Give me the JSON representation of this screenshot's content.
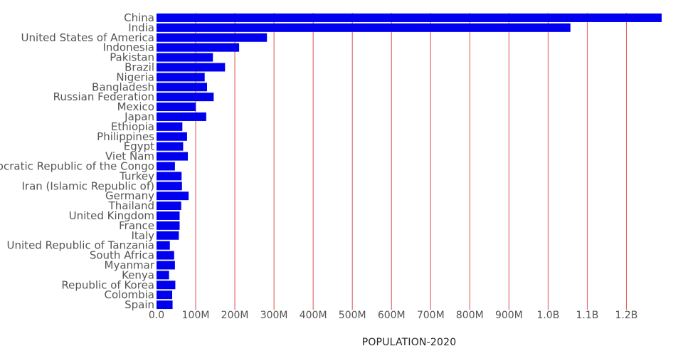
{
  "chart_data": {
    "type": "bar",
    "orientation": "horizontal",
    "xlabel": "POPULATION-2020",
    "ylabel": "",
    "xlim": [
      0,
      1290000000
    ],
    "grid": "vertical",
    "colors": {
      "bar": "#0000ee",
      "grid": "#e05050",
      "text": "#555555"
    },
    "ticks": [
      {
        "value": 0,
        "label": "0.0"
      },
      {
        "value": 100000000,
        "label": "100M"
      },
      {
        "value": 200000000,
        "label": "200M"
      },
      {
        "value": 300000000,
        "label": "300M"
      },
      {
        "value": 400000000,
        "label": "400M"
      },
      {
        "value": 500000000,
        "label": "500M"
      },
      {
        "value": 600000000,
        "label": "600M"
      },
      {
        "value": 700000000,
        "label": "700M"
      },
      {
        "value": 800000000,
        "label": "800M"
      },
      {
        "value": 900000000,
        "label": "900M"
      },
      {
        "value": 1000000000,
        "label": "1.0B"
      },
      {
        "value": 1100000000,
        "label": "1.1B"
      },
      {
        "value": 1200000000,
        "label": "1.2B"
      }
    ],
    "categories": [
      "China",
      "India",
      "United States of America",
      "Indonesia",
      "Pakistan",
      "Brazil",
      "Nigeria",
      "Bangladesh",
      "Russian Federation",
      "Mexico",
      "Japan",
      "Ethiopia",
      "Philippines",
      "Egypt",
      "Viet Nam",
      "Democratic Republic of the Congo",
      "Turkey",
      "Iran (Islamic Republic of)",
      "Germany",
      "Thailand",
      "United Kingdom",
      "France",
      "Italy",
      "United Republic of Tanzania",
      "South Africa",
      "Myanmar",
      "Kenya",
      "Republic of Korea",
      "Colombia",
      "Spain"
    ],
    "values": [
      1290000000,
      1057000000,
      282000000,
      211000000,
      144000000,
      175000000,
      123000000,
      129000000,
      146000000,
      100000000,
      127000000,
      66000000,
      78000000,
      68000000,
      80000000,
      47000000,
      64000000,
      65000000,
      82000000,
      63000000,
      59000000,
      59000000,
      57000000,
      34000000,
      45000000,
      47000000,
      32000000,
      48000000,
      40000000,
      41000000
    ]
  }
}
